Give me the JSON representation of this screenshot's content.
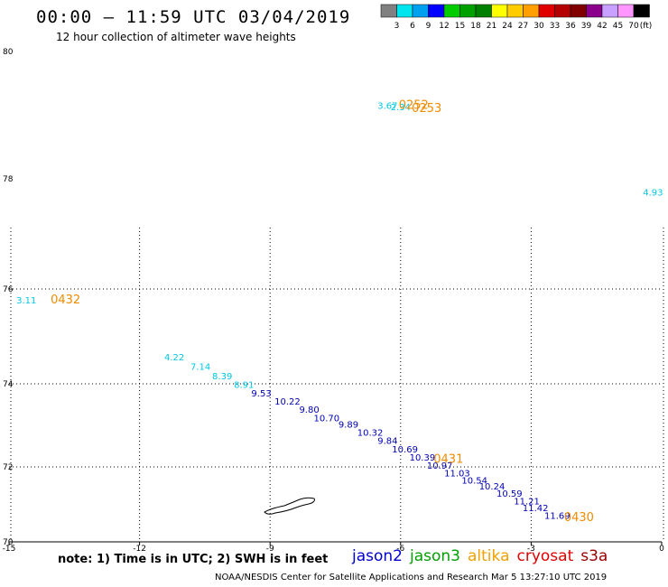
{
  "header": {
    "title": "00:00 – 11:59 UTC 03/04/2019",
    "subtitle": "12 hour collection of altimeter wave heights"
  },
  "colorbar": {
    "colors": [
      "#808080",
      "#00e5ee",
      "#00a0f0",
      "#0000ff",
      "#00cc00",
      "#00a000",
      "#008000",
      "#ffff00",
      "#ffcc00",
      "#ffa000",
      "#e00000",
      "#b40000",
      "#800000",
      "#8b008b",
      "#c8a0ff",
      "#ff96ff",
      "#000000"
    ],
    "labels": [
      "3",
      "6",
      "9",
      "12",
      "15",
      "18",
      "21",
      "24",
      "27",
      "30",
      "33",
      "36",
      "39",
      "42",
      "45",
      "70"
    ],
    "unit": "(ft)"
  },
  "axes": {
    "lat_labels": [
      "80",
      "78",
      "76",
      "74",
      "72",
      "70"
    ],
    "lon_labels": [
      "-15",
      "-12",
      "-9",
      "-6",
      "-3",
      "0"
    ]
  },
  "tracks": {
    "cyan": [
      {
        "v": "3.67",
        "lon": -6.3,
        "lat": 79.1
      },
      {
        "v": "2.34",
        "lon": -6.0,
        "lat": 79.08
      },
      {
        "v": "4.93",
        "lon": -0.2,
        "lat": 77.7
      },
      {
        "v": "3.11",
        "lon": -14.6,
        "lat": 75.7
      },
      {
        "v": "4.22",
        "lon": -11.2,
        "lat": 74.5
      },
      {
        "v": "7.14",
        "lon": -10.6,
        "lat": 74.3
      },
      {
        "v": "8.39",
        "lon": -10.1,
        "lat": 74.1
      },
      {
        "v": "8.91",
        "lon": -9.6,
        "lat": 73.9
      }
    ],
    "blue": [
      {
        "v": "9.53",
        "lon": -9.2,
        "lat": 73.7
      },
      {
        "v": "10.22",
        "lon": -8.6,
        "lat": 73.5
      },
      {
        "v": "9.80",
        "lon": -8.1,
        "lat": 73.3
      },
      {
        "v": "10.70",
        "lon": -7.7,
        "lat": 73.1
      },
      {
        "v": "9.89",
        "lon": -7.2,
        "lat": 72.95
      },
      {
        "v": "10.32",
        "lon": -6.7,
        "lat": 72.75
      },
      {
        "v": "9.84",
        "lon": -6.3,
        "lat": 72.55
      },
      {
        "v": "10.69",
        "lon": -5.9,
        "lat": 72.35
      },
      {
        "v": "10.39",
        "lon": -5.5,
        "lat": 72.15
      },
      {
        "v": "10.97",
        "lon": -5.1,
        "lat": 71.95
      },
      {
        "v": "11.03",
        "lon": -4.7,
        "lat": 71.75
      },
      {
        "v": "10.54",
        "lon": -4.3,
        "lat": 71.55
      },
      {
        "v": "10.24",
        "lon": -3.9,
        "lat": 71.4
      },
      {
        "v": "10.59",
        "lon": -3.5,
        "lat": 71.2
      },
      {
        "v": "11.21",
        "lon": -3.1,
        "lat": 71.0
      },
      {
        "v": "11.42",
        "lon": -2.9,
        "lat": 70.82
      },
      {
        "v": "11.69",
        "lon": -2.4,
        "lat": 70.62
      }
    ]
  },
  "time_labels": [
    {
      "t": "0252",
      "lon": -5.7,
      "lat": 79.1
    },
    {
      "t": "0253",
      "lon": -5.4,
      "lat": 79.05
    },
    {
      "t": "0432",
      "lon": -13.7,
      "lat": 75.7
    },
    {
      "t": "0431",
      "lon": -4.9,
      "lat": 72.1
    },
    {
      "t": "0430",
      "lon": -1.9,
      "lat": 70.55
    }
  ],
  "note": "note: 1) Time is in UTC; 2) SWH is in feet",
  "legend": [
    {
      "name": "jason2",
      "color": "#0000cc"
    },
    {
      "name": "jason3",
      "color": "#00a000"
    },
    {
      "name": "altika",
      "color": "#f0a000"
    },
    {
      "name": "cryosat",
      "color": "#e00000"
    },
    {
      "name": "s3a",
      "color": "#990000"
    }
  ],
  "footer": "NOAA/NESDIS Center for Satellite Applications and Research     Mar  5 13:27:10 UTC 2019"
}
